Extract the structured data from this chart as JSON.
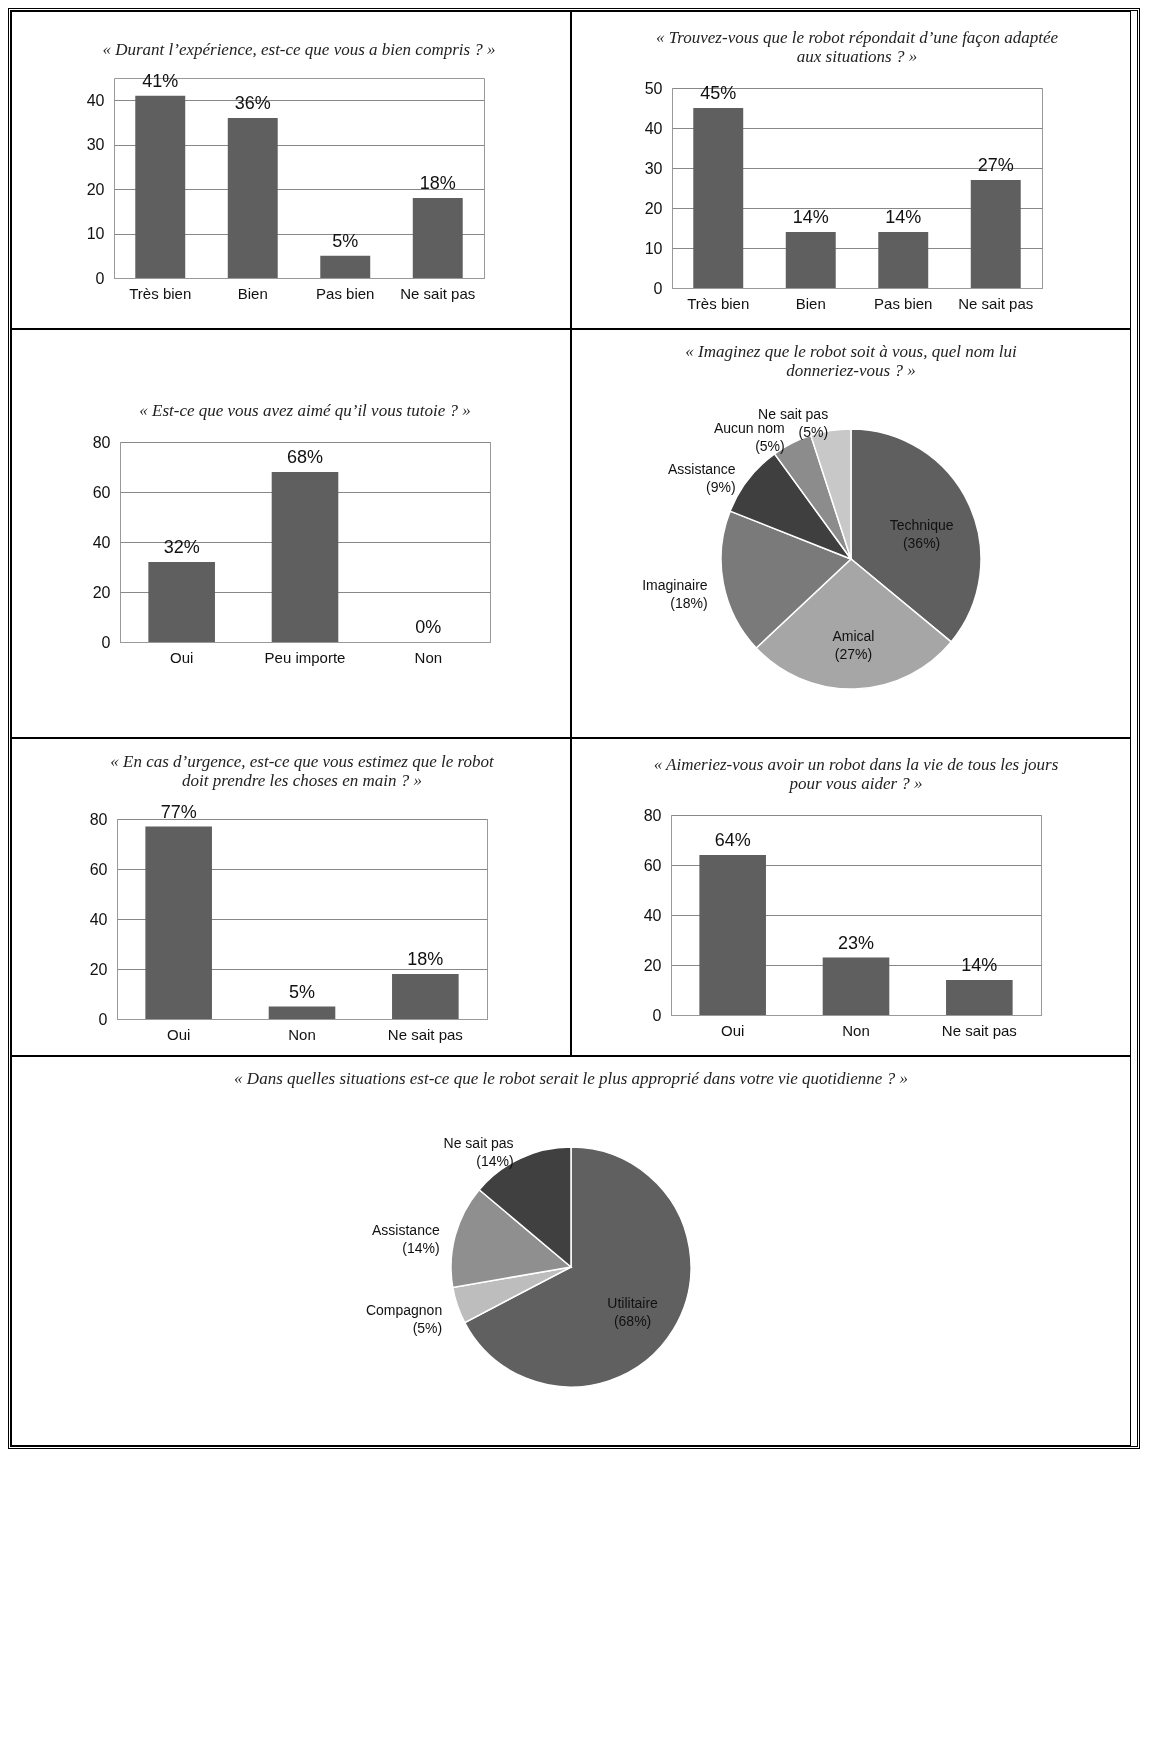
{
  "chart_data": [
    {
      "type": "bar",
      "title": "« Durant l’expérience, est-ce que vous a bien compris ? »",
      "categories": [
        "Très bien",
        "Bien",
        "Pas bien",
        "Ne sait pas"
      ],
      "values": [
        41,
        36,
        5,
        18
      ],
      "value_labels": [
        "41%",
        "36%",
        "5%",
        "18%"
      ],
      "color": "#5f5f5f",
      "ylim": [
        0,
        45
      ],
      "yticks": [
        0,
        10,
        20,
        30,
        40
      ],
      "grid": "y"
    },
    {
      "type": "bar",
      "title": "« Trouvez-vous que le robot répondait d’une façon adaptée aux situations ? »",
      "categories": [
        "Très bien",
        "Bien",
        "Pas bien",
        "Ne sait pas"
      ],
      "values": [
        45,
        14,
        14,
        27
      ],
      "value_labels": [
        "45%",
        "14%",
        "14%",
        "27%"
      ],
      "color": "#5f5f5f",
      "ylim": [
        0,
        50
      ],
      "yticks": [
        0,
        10,
        20,
        30,
        40,
        50
      ],
      "grid": "y"
    },
    {
      "type": "bar",
      "title": "« Est-ce que vous avez aimé qu’il vous tutoie ? »",
      "categories": [
        "Oui",
        "Peu importe",
        "Non"
      ],
      "values": [
        32,
        68,
        0
      ],
      "value_labels": [
        "32%",
        "68%",
        "0%"
      ],
      "color": "#5f5f5f",
      "ylim": [
        0,
        80
      ],
      "yticks": [
        0,
        20,
        40,
        60,
        80
      ],
      "grid": "y"
    },
    {
      "type": "pie",
      "title": "« Imaginez que le robot soit à vous, quel nom lui donneriez-vous ? »",
      "categories": [
        "Technique",
        "Amical",
        "Imaginaire",
        "Assistance",
        "Aucun nom",
        "Ne sait pas"
      ],
      "values": [
        36,
        27,
        18,
        9,
        5,
        5
      ],
      "value_labels": [
        "(36%)",
        "(27%)",
        "(18%)",
        "(9%)",
        "(5%)",
        "(5%)"
      ],
      "colors": [
        "#5f5f5f",
        "#a6a6a6",
        "#7a7a7a",
        "#3f3f3f",
        "#8c8c8c",
        "#c8c8c8"
      ]
    },
    {
      "type": "bar",
      "title": "« En cas d’urgence, est-ce que vous estimez que le robot doit prendre les choses en main ? »",
      "categories": [
        "Oui",
        "Non",
        "Ne sait pas"
      ],
      "values": [
        77,
        5,
        18
      ],
      "value_labels": [
        "77%",
        "5%",
        "18%"
      ],
      "color": "#5f5f5f",
      "ylim": [
        0,
        80
      ],
      "yticks": [
        0,
        20,
        40,
        60,
        80
      ],
      "grid": "y"
    },
    {
      "type": "bar",
      "title": "« Aimeriez-vous avoir un robot dans la vie de tous les jours pour vous aider ? »",
      "categories": [
        "Oui",
        "Non",
        "Ne sait pas"
      ],
      "values": [
        64,
        23,
        14
      ],
      "value_labels": [
        "64%",
        "23%",
        "14%"
      ],
      "color": "#5f5f5f",
      "ylim": [
        0,
        80
      ],
      "yticks": [
        0,
        20,
        40,
        60,
        80
      ],
      "grid": "y"
    },
    {
      "type": "pie",
      "title": "« Dans quelles situations est-ce que le robot serait le plus approprié dans votre vie quotidienne ? »",
      "categories": [
        "Utilitaire",
        "Compagnon",
        "Assistance",
        "Ne sait pas"
      ],
      "values": [
        68,
        5,
        14,
        14
      ],
      "value_labels": [
        "(68%)",
        "(5%)",
        "(14%)",
        "(14%)"
      ],
      "colors": [
        "#606060",
        "#bdbdbd",
        "#8f8f8f",
        "#404040"
      ]
    }
  ]
}
